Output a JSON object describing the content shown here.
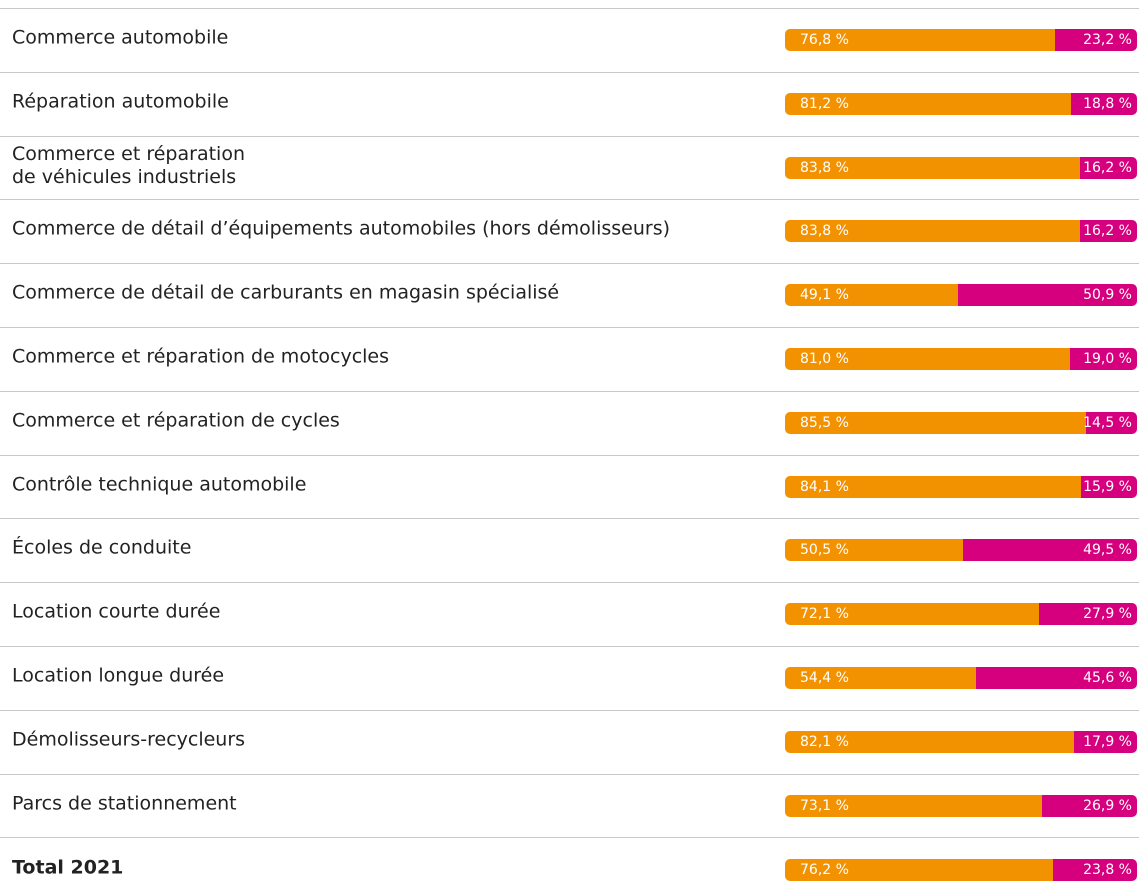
{
  "chart_data": {
    "type": "stacked_barh",
    "categories": [
      "Commerce automobile",
      "Réparation automobile",
      "Commerce et réparation\nde véhicules industriels",
      "Commerce de détail d’équipements automobiles (hors démolisseurs)",
      "Commerce de détail de carburants en magasin spécialisé",
      "Commerce et réparation de motocycles",
      "Commerce et réparation de cycles",
      "Contrôle technique automobile",
      "Écoles de conduite",
      "Location courte durée",
      "Location longue durée",
      "Démolisseurs-recycleurs",
      "Parcs de stationnement",
      "Total 2021"
    ],
    "xlim": [
      0,
      100
    ],
    "series": [
      {
        "color": "#f39200",
        "values": [
          76.8,
          81.2,
          83.8,
          83.8,
          49.1,
          81.0,
          85.5,
          84.1,
          50.5,
          72.1,
          54.4,
          82.1,
          73.1,
          76.2
        ],
        "value_labels": [
          "76,8 %",
          "81,2 %",
          "83,8 %",
          "83,8 %",
          "49,1 %",
          "81,0 %",
          "85,5 %",
          "84,1 %",
          "50,5 %",
          "72,1 %",
          "54,4 %",
          "82,1 %",
          "73,1 %",
          "76,2 %"
        ]
      },
      {
        "color": "#d6007e",
        "values": [
          23.2,
          18.8,
          16.2,
          16.2,
          50.9,
          19.0,
          14.5,
          15.9,
          49.5,
          27.9,
          45.6,
          17.9,
          26.9,
          23.8
        ],
        "value_labels": [
          "23,2 %",
          "18,8 %",
          "16,2 %",
          "16,2 %",
          "50,9 %",
          "19,0 %",
          "14,5 %",
          "15,9 %",
          "49,5 %",
          "27,9 %",
          "45,6 %",
          "17,9 %",
          "26,9 %",
          "23,8 %"
        ]
      }
    ]
  }
}
